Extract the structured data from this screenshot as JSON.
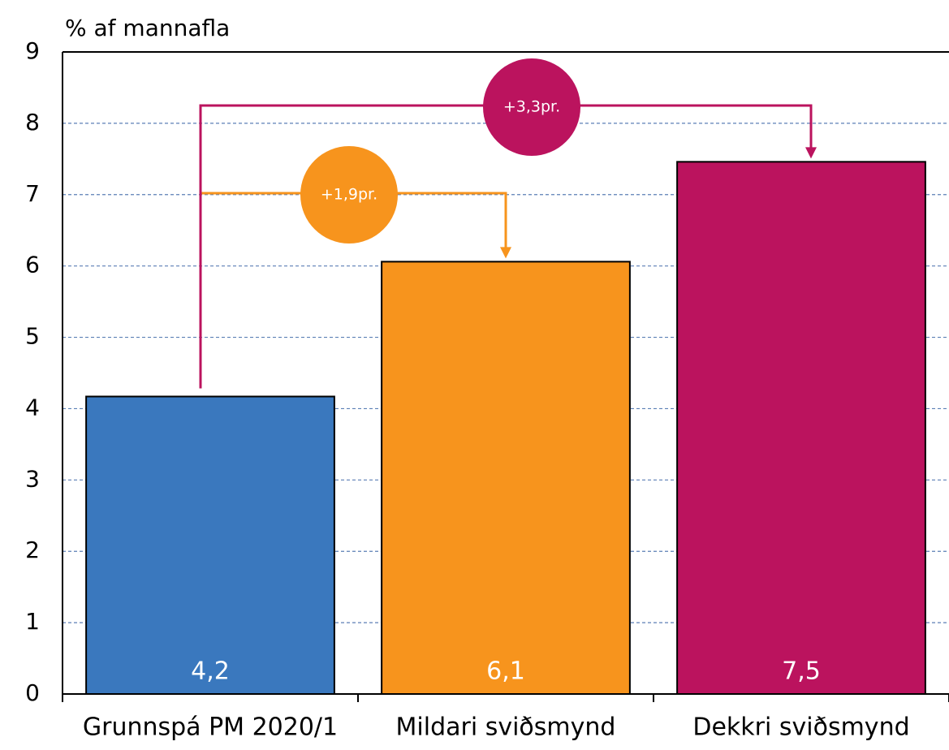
{
  "chart_data": {
    "type": "bar",
    "y_axis_label": "% af mannafla",
    "categories": [
      "Grunnspá PM 2020/1",
      "Mildari sviðsmynd",
      "Dekkri sviðsmynd"
    ],
    "values": [
      4.17,
      6.06,
      7.46
    ],
    "value_labels": [
      "4,2",
      "6,1",
      "7,5"
    ],
    "colors": [
      "#3a78be",
      "#f7941d",
      "#bb135e"
    ],
    "ylim": [
      0,
      9
    ],
    "yticks": [
      0,
      1,
      2,
      3,
      4,
      5,
      6,
      7,
      8,
      9
    ],
    "grid": true,
    "annotations": [
      {
        "label": "+1,9pr.",
        "color": "#f7941d"
      },
      {
        "label": "+3,3pr.",
        "color": "#bb135e"
      }
    ]
  }
}
